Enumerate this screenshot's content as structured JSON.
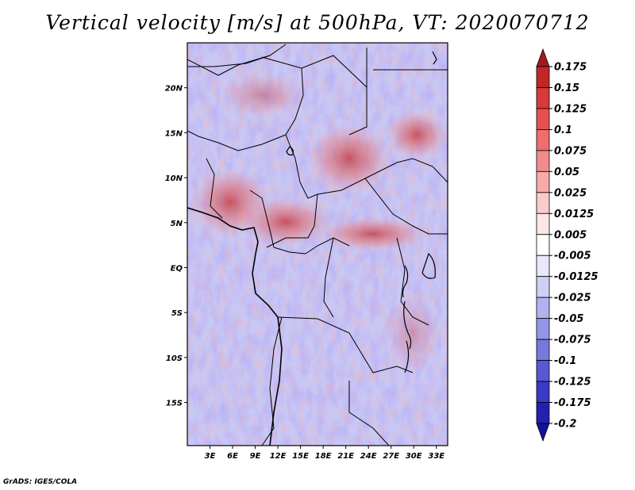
{
  "title": "Vertical velocity [m/s] at 500hPa, VT: 2020070712",
  "footer": "GrADS: IGES/COLA",
  "map": {
    "lat_labels": [
      "20N",
      "15N",
      "10N",
      "5N",
      "EQ",
      "5S",
      "10S",
      "15S"
    ],
    "lat_values": [
      20,
      15,
      10,
      5,
      0,
      -5,
      -10,
      -15
    ],
    "lon_labels": [
      "3E",
      "6E",
      "9E",
      "12E",
      "15E",
      "18E",
      "21E",
      "24E",
      "27E",
      "30E",
      "33E"
    ],
    "lon_values": [
      3,
      6,
      9,
      12,
      15,
      18,
      21,
      24,
      27,
      30,
      33
    ],
    "lon_range": [
      0,
      34.5
    ],
    "lat_range": [
      -19.8,
      25
    ]
  },
  "colorbar": {
    "labels": [
      "0.175",
      "0.15",
      "0.125",
      "0.1",
      "0.075",
      "0.05",
      "0.025",
      "0.0125",
      "0.005",
      "-0.005",
      "-0.0125",
      "-0.025",
      "-0.05",
      "-0.075",
      "-0.1",
      "-0.125",
      "-0.175",
      "-0.2"
    ],
    "colors": [
      "#a01a1a",
      "#c02828",
      "#d63a3a",
      "#e45050",
      "#ec6e6e",
      "#f28c8c",
      "#f7aaaa",
      "#fbcaca",
      "#fde6e6",
      "#ffffff",
      "#e8e8fb",
      "#cfcff6",
      "#b2b2f0",
      "#9595e8",
      "#7878de",
      "#5858d2",
      "#3a3ac4",
      "#2222b0",
      "#12129a"
    ]
  }
}
